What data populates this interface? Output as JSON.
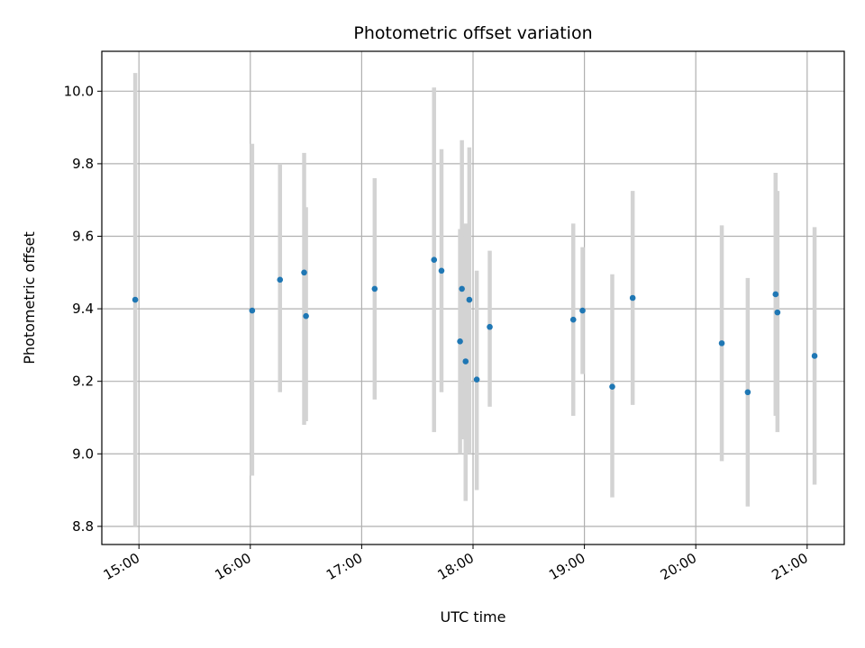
{
  "chart_data": {
    "type": "scatter",
    "title": "Photometric offset variation",
    "xlabel": "UTC time",
    "ylabel": "Photometric offset",
    "x_axis": "time",
    "xlim": [
      "14:40",
      "21:20"
    ],
    "ylim": [
      8.75,
      10.11
    ],
    "xticks": [
      "15:00",
      "16:00",
      "17:00",
      "18:00",
      "19:00",
      "20:00",
      "21:00"
    ],
    "yticks": [
      8.8,
      9.0,
      9.2,
      9.4,
      9.6,
      9.8,
      10.0
    ],
    "grid": true,
    "colors": {
      "points": "#1f77b4",
      "errorbars": "#d3d3d3",
      "grid": "#b0b0b0"
    },
    "points": [
      {
        "x": "14:58",
        "y": 9.425,
        "ylow": 8.8,
        "yhigh": 10.05
      },
      {
        "x": "16:01",
        "y": 9.395,
        "ylow": 8.94,
        "yhigh": 9.855
      },
      {
        "x": "16:16",
        "y": 9.48,
        "ylow": 9.17,
        "yhigh": 9.8
      },
      {
        "x": "16:29",
        "y": 9.5,
        "ylow": 9.08,
        "yhigh": 9.83
      },
      {
        "x": "16:30",
        "y": 9.38,
        "ylow": 9.09,
        "yhigh": 9.68
      },
      {
        "x": "17:07",
        "y": 9.455,
        "ylow": 9.15,
        "yhigh": 9.76
      },
      {
        "x": "17:39",
        "y": 9.535,
        "ylow": 9.06,
        "yhigh": 10.01
      },
      {
        "x": "17:43",
        "y": 9.505,
        "ylow": 9.17,
        "yhigh": 9.84
      },
      {
        "x": "17:53",
        "y": 9.31,
        "ylow": 9.0,
        "yhigh": 9.62
      },
      {
        "x": "17:54",
        "y": 9.455,
        "ylow": 9.04,
        "yhigh": 9.865
      },
      {
        "x": "17:56",
        "y": 9.255,
        "ylow": 8.87,
        "yhigh": 9.635
      },
      {
        "x": "17:58",
        "y": 9.425,
        "ylow": 9.0,
        "yhigh": 9.845
      },
      {
        "x": "18:02",
        "y": 9.205,
        "ylow": 8.9,
        "yhigh": 9.505
      },
      {
        "x": "18:09",
        "y": 9.35,
        "ylow": 9.13,
        "yhigh": 9.56
      },
      {
        "x": "18:54",
        "y": 9.37,
        "ylow": 9.105,
        "yhigh": 9.635
      },
      {
        "x": "18:59",
        "y": 9.395,
        "ylow": 9.22,
        "yhigh": 9.57
      },
      {
        "x": "19:15",
        "y": 9.185,
        "ylow": 8.88,
        "yhigh": 9.495
      },
      {
        "x": "19:26",
        "y": 9.43,
        "ylow": 9.135,
        "yhigh": 9.725
      },
      {
        "x": "20:14",
        "y": 9.305,
        "ylow": 8.98,
        "yhigh": 9.63
      },
      {
        "x": "20:28",
        "y": 9.17,
        "ylow": 8.855,
        "yhigh": 9.485
      },
      {
        "x": "20:43",
        "y": 9.44,
        "ylow": 9.105,
        "yhigh": 9.775
      },
      {
        "x": "20:44",
        "y": 9.39,
        "ylow": 9.06,
        "yhigh": 9.725
      },
      {
        "x": "21:04",
        "y": 9.27,
        "ylow": 8.915,
        "yhigh": 9.625
      }
    ]
  }
}
